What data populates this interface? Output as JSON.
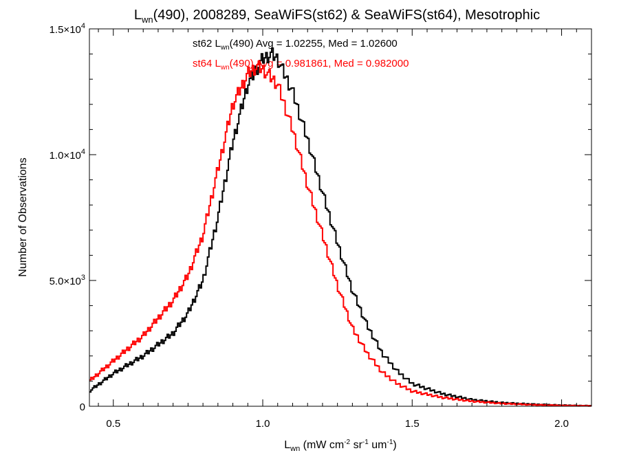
{
  "chart_data": {
    "type": "line",
    "style": "step-histogram",
    "title": {
      "base": "L",
      "sub": "wn",
      "rest": "(490), 2008289, SeaWiFS(st62) & SeaWiFS(st64), Mesotrophic"
    },
    "xlabel": {
      "base": "L",
      "sub": "wn",
      "parts": [
        {
          "text": " (mW cm",
          "sup": false
        },
        {
          "text": "-2",
          "sup": true
        },
        {
          "text": " sr",
          "sup": false
        },
        {
          "text": "-1",
          "sup": true
        },
        {
          "text": " um",
          "sup": false
        },
        {
          "text": "-1",
          "sup": true
        },
        {
          "text": ")",
          "sup": false
        }
      ]
    },
    "ylabel": "Number of Observations",
    "xlim": [
      0.42,
      2.1
    ],
    "ylim": [
      0,
      15000
    ],
    "x_ticks": [
      {
        "value": 0.5,
        "label": "0.5"
      },
      {
        "value": 1.0,
        "label": "1.0"
      },
      {
        "value": 1.5,
        "label": "1.5"
      },
      {
        "value": 2.0,
        "label": "2.0"
      }
    ],
    "y_ticks": [
      {
        "value": 0,
        "mantissa": "0",
        "exp": ""
      },
      {
        "value": 5000,
        "mantissa": "5.0×10",
        "exp": "3"
      },
      {
        "value": 10000,
        "mantissa": "1.0×10",
        "exp": "4"
      },
      {
        "value": 15000,
        "mantissa": "1.5×10",
        "exp": "4"
      }
    ],
    "grid": false,
    "legend_position": "top-center",
    "series": [
      {
        "name": "st62",
        "color": "#000000",
        "legend": {
          "pre": "st62 L",
          "sub": "wn",
          "post": "(490) Avg = 1.02255, Med = 1.02600"
        },
        "x": [
          0.42,
          0.5,
          0.6,
          0.7,
          0.75,
          0.8,
          0.85,
          0.9,
          0.95,
          1.0,
          1.03,
          1.05,
          1.1,
          1.15,
          1.2,
          1.25,
          1.3,
          1.35,
          1.4,
          1.45,
          1.5,
          1.6,
          1.7,
          1.8,
          1.9,
          2.0,
          2.1
        ],
        "y": [
          600,
          1300,
          2000,
          2900,
          3700,
          5000,
          7500,
          10500,
          12800,
          13800,
          14000,
          13800,
          12500,
          10600,
          8500,
          6500,
          4600,
          3200,
          2100,
          1400,
          900,
          500,
          260,
          140,
          80,
          40,
          20
        ]
      },
      {
        "name": "st64",
        "color": "#ff0000",
        "legend": {
          "pre": "st64 L",
          "sub": "wn",
          "post": "(490) Avg = 0.981861, Med = 0.982000"
        },
        "x": [
          0.42,
          0.5,
          0.6,
          0.7,
          0.75,
          0.8,
          0.85,
          0.9,
          0.95,
          0.98,
          1.0,
          1.05,
          1.1,
          1.15,
          1.2,
          1.25,
          1.3,
          1.35,
          1.4,
          1.45,
          1.5,
          1.6,
          1.7,
          1.8,
          1.9,
          2.0,
          2.1
        ],
        "y": [
          1000,
          1800,
          2800,
          4200,
          5200,
          6800,
          9400,
          12000,
          13200,
          13500,
          13400,
          12800,
          11000,
          8800,
          6800,
          4800,
          3100,
          2100,
          1350,
          900,
          600,
          350,
          200,
          110,
          60,
          30,
          15
        ]
      }
    ]
  }
}
